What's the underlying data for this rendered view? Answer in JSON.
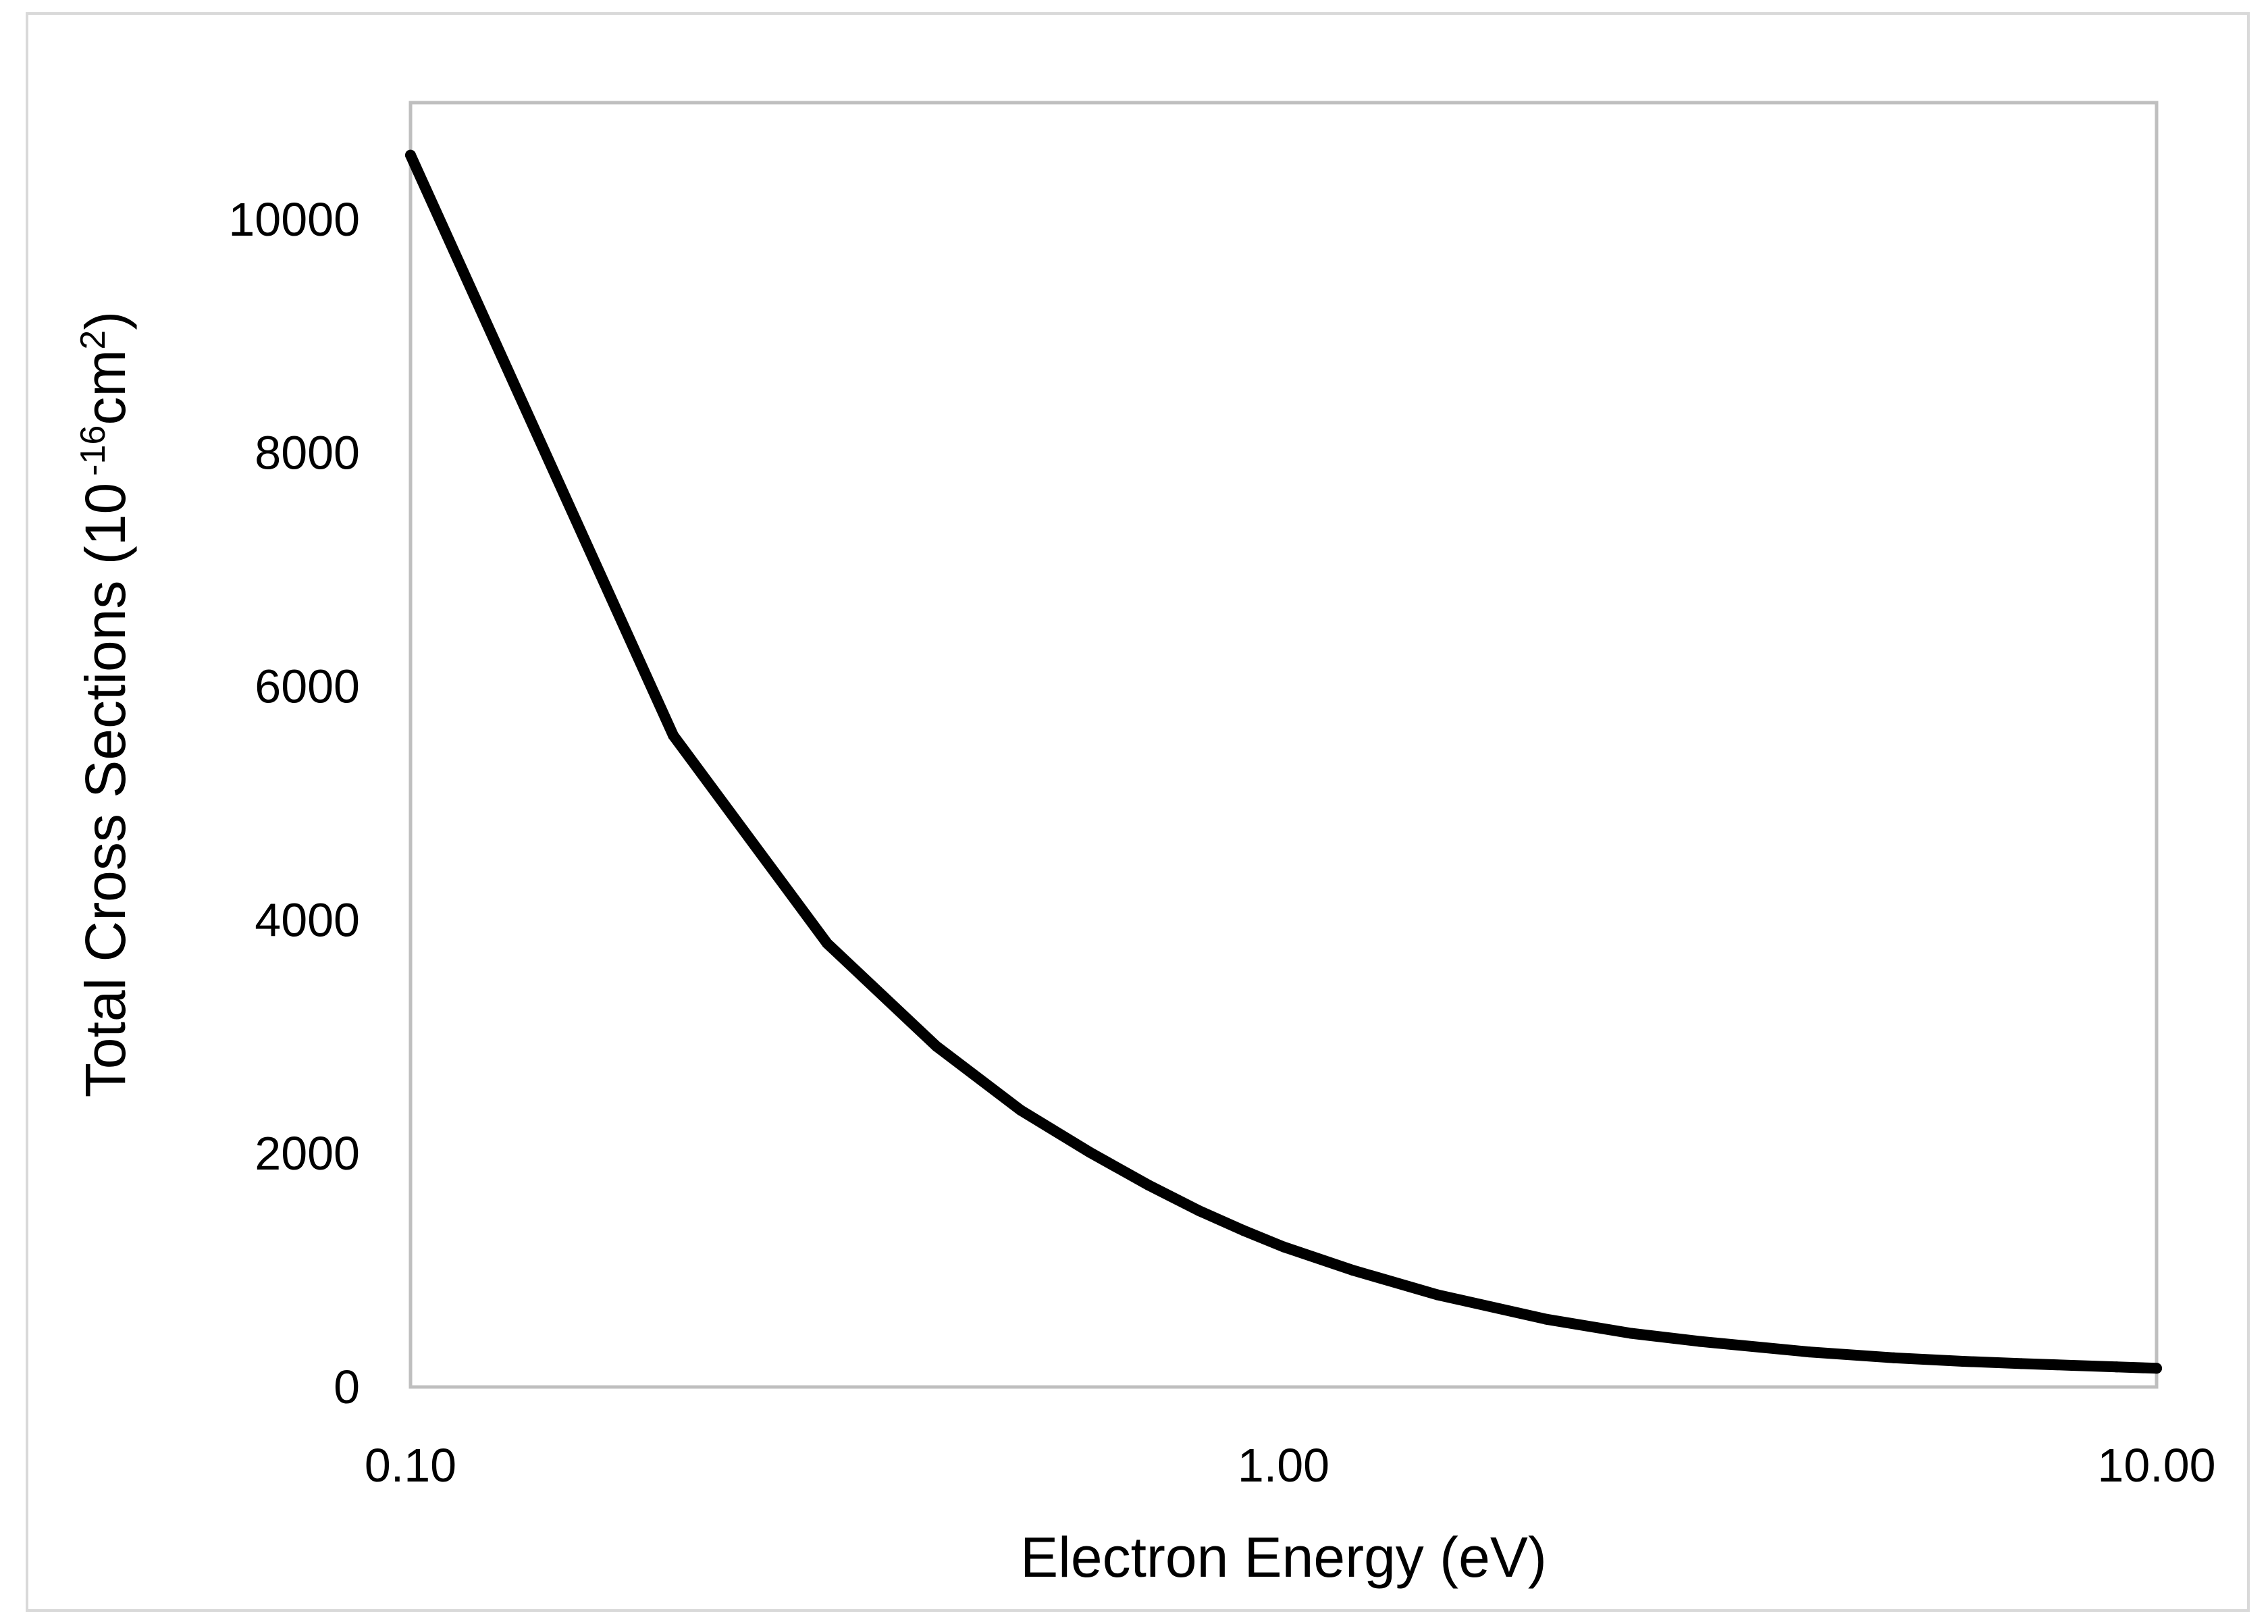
{
  "chart_data": {
    "type": "line",
    "title": "",
    "xlabel": "Electron Energy (eV)",
    "ylabel": "Total Cross Sections (10",
    "ylabel_exponent": "-16",
    "ylabel_unit": "cm",
    "ylabel_unit_exponent": "2",
    "ylabel_close": ")",
    "x_scale": "log",
    "xlim": [
      0.1,
      10.0
    ],
    "ylim": [
      0,
      11000
    ],
    "x_ticks": [
      "0.10",
      "1.00",
      "10.00"
    ],
    "x_tick_values": [
      0.1,
      1.0,
      10.0
    ],
    "y_ticks": [
      "0",
      "2000",
      "4000",
      "6000",
      "8000",
      "10000"
    ],
    "y_tick_values": [
      0,
      2000,
      4000,
      6000,
      8000,
      10000
    ],
    "grid": false,
    "legend": "none",
    "colors": {
      "line": "#000000",
      "plot_border": "#bfbfbf",
      "outer_border": "#d9d9d9"
    },
    "series": [
      {
        "name": "Total Cross Sections",
        "x": [
          0.1,
          0.2,
          0.3,
          0.4,
          0.5,
          0.6,
          0.7,
          0.8,
          0.9,
          1.0,
          1.2,
          1.5,
          2.0,
          2.5,
          3.0,
          4.0,
          5.0,
          6.0,
          7.0,
          8.0,
          9.0,
          10.0
        ],
        "y": [
          10550,
          5580,
          3800,
          2920,
          2370,
          2010,
          1730,
          1510,
          1340,
          1200,
          1000,
          790,
          580,
          460,
          390,
          300,
          250,
          220,
          200,
          185,
          172,
          160
        ]
      }
    ]
  }
}
